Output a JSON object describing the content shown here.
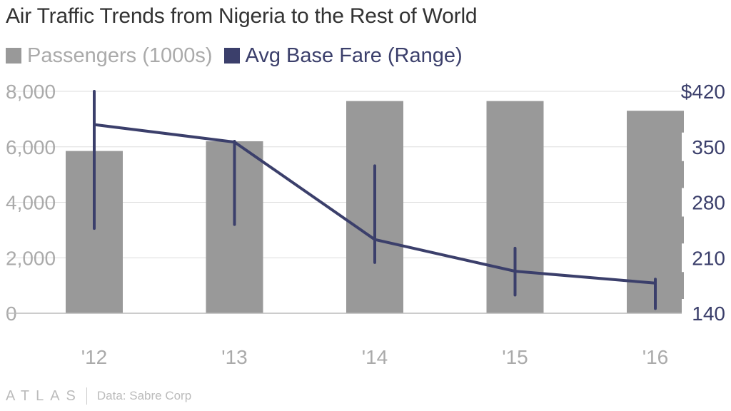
{
  "title": "Air Traffic Trends from Nigeria to the Rest of World",
  "legend": [
    {
      "label": "Passengers (1000s)",
      "color": "#999999"
    },
    {
      "label": "Avg Base Fare (Range)",
      "color": "#3b3f6b"
    }
  ],
  "footer": {
    "logo": "ATLAS",
    "source": "Data: Sabre Corp"
  },
  "colors": {
    "bar": "#999999",
    "fare": "#3b3f6b",
    "left_axis_text": "#aaaaaa",
    "right_axis_text": "#3b3f6b",
    "grid": "#dddddd",
    "baseline": "#bbbbbb"
  },
  "chart_data": {
    "type": "bar",
    "title": "Air Traffic Trends from Nigeria to the Rest of World",
    "categories": [
      "'12",
      "'13",
      "'14",
      "'15",
      "'16"
    ],
    "series": [
      {
        "name": "Passengers (1000s)",
        "type": "bar",
        "axis": "left",
        "values": [
          5850,
          6200,
          7650,
          7650,
          7300
        ]
      },
      {
        "name": "Avg Base Fare (Range)",
        "type": "line",
        "axis": "right",
        "values": [
          378,
          356,
          233,
          193,
          178
        ],
        "range_low": [
          247,
          252,
          204,
          163,
          146
        ],
        "range_high": [
          420,
          357,
          326,
          222,
          183
        ]
      }
    ],
    "left_axis": {
      "ticks": [
        "0",
        "2,000",
        "4,000",
        "6,000",
        "8,000"
      ],
      "tick_values": [
        0,
        2000,
        4000,
        6000,
        8000
      ],
      "range": [
        0,
        8000
      ]
    },
    "right_axis": {
      "ticks": [
        "140",
        "210",
        "280",
        "350",
        "$420"
      ],
      "tick_values": [
        140,
        210,
        280,
        350,
        420
      ],
      "range": [
        140,
        420
      ]
    },
    "grid": true,
    "legend_position": "top-left"
  }
}
